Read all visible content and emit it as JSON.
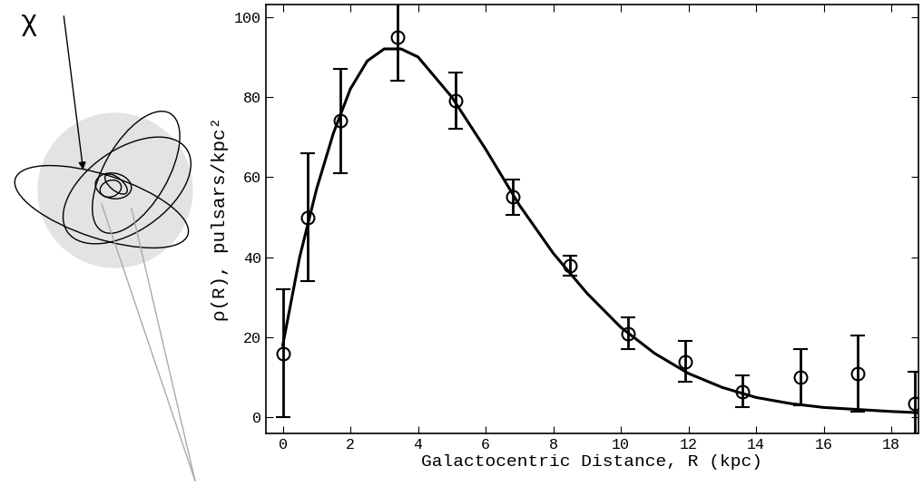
{
  "chart_data": {
    "type": "scatter",
    "x_label": "Galactocentric Distance, R (kpc)",
    "y_label": "ρ(R), pulsars/kpc²",
    "annotations": [
      "χ"
    ],
    "xlim": [
      -0.5,
      18.8
    ],
    "ylim": [
      -4,
      103
    ],
    "xticks": [
      0,
      2,
      4,
      6,
      8,
      10,
      12,
      14,
      16,
      18
    ],
    "yticks": [
      0,
      20,
      40,
      60,
      80,
      100
    ],
    "grid": false,
    "series": [
      {
        "type": "scatter",
        "marker": "o",
        "color": "#000000",
        "x": [
          0,
          0.75,
          1.7,
          3.4,
          5.1,
          6.8,
          8.5,
          10.2,
          11.9,
          13.6,
          15.3,
          17.0,
          18.7
        ],
        "values": [
          16,
          50,
          74,
          95,
          79,
          55,
          38,
          21,
          14,
          6.5,
          10,
          11,
          3.5
        ],
        "errors": [
          16,
          16,
          13,
          11,
          7,
          4.5,
          2.5,
          4,
          5,
          4,
          7,
          9.5,
          8
        ]
      },
      {
        "type": "line",
        "line_style": "solid",
        "color": "#000000",
        "x": [
          0,
          0.5,
          1,
          1.5,
          2,
          2.5,
          3,
          3.5,
          4,
          5,
          6,
          7,
          8,
          9,
          10,
          11,
          12,
          13,
          14,
          15,
          16,
          17,
          18,
          18.8
        ],
        "values": [
          18,
          40,
          57,
          71,
          82,
          89,
          92,
          92,
          90,
          80,
          67,
          53,
          41,
          31,
          22.5,
          16,
          11,
          7.5,
          5,
          3.5,
          2.5,
          2,
          1.5,
          1.2
        ]
      }
    ]
  }
}
